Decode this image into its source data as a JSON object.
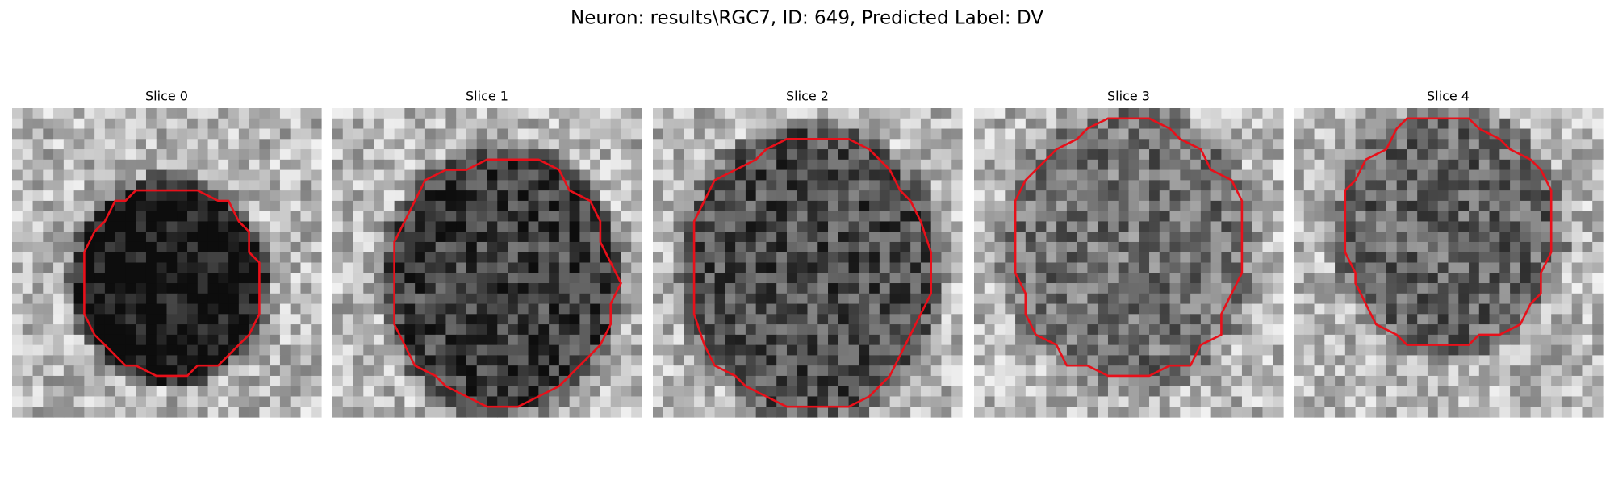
{
  "title": "Neuron: results\\RGC7, ID: 649, Predicted Label: DV",
  "panels": [
    {
      "title": "Slice 0"
    },
    {
      "title": "Slice 1"
    },
    {
      "title": "Slice 2"
    },
    {
      "title": "Slice 3"
    },
    {
      "title": "Slice 4"
    }
  ]
}
